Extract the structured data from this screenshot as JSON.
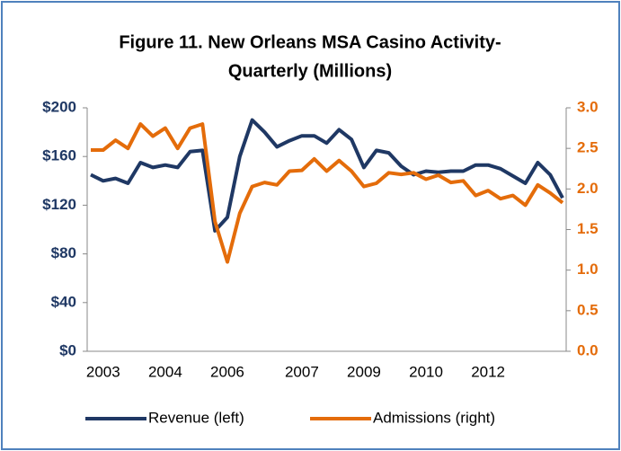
{
  "chart_data": {
    "type": "line",
    "title": [
      "Figure 11. New Orleans MSA Casino Activity-",
      "Quarterly (Millions)"
    ],
    "categories": [
      null,
      "2003",
      null,
      null,
      null,
      null,
      "2004",
      null,
      null,
      null,
      null,
      "2006",
      null,
      null,
      null,
      null,
      null,
      "2007",
      null,
      null,
      null,
      null,
      "2009",
      null,
      null,
      null,
      null,
      "2010",
      null,
      null,
      null,
      null,
      "2012",
      null,
      null,
      null,
      null,
      null,
      null
    ],
    "series": [
      {
        "name": "Revenue (left)",
        "color": "#1f3864",
        "axis": "y",
        "values": [
          145,
          140,
          142,
          138,
          155,
          151,
          153,
          151,
          164,
          165,
          99,
          110,
          160,
          190,
          180,
          168,
          173,
          177,
          177,
          171,
          182,
          174,
          151,
          165,
          163,
          152,
          145,
          148,
          147,
          148,
          148,
          153,
          153,
          150,
          144,
          138,
          155,
          145,
          126
        ]
      },
      {
        "name": "Admissions (right)",
        "color": "#e46c0a",
        "axis": "y2",
        "values": [
          2.48,
          2.48,
          2.6,
          2.5,
          2.8,
          2.65,
          2.75,
          2.5,
          2.75,
          2.8,
          1.6,
          1.1,
          1.7,
          2.03,
          2.08,
          2.05,
          2.22,
          2.23,
          2.37,
          2.22,
          2.35,
          2.22,
          2.03,
          2.07,
          2.2,
          2.18,
          2.2,
          2.12,
          2.17,
          2.08,
          2.1,
          1.92,
          1.98,
          1.88,
          1.92,
          1.8,
          2.05,
          1.95,
          1.83
        ]
      }
    ],
    "ylim": [
      0,
      200
    ],
    "yticks": [
      {
        "value": 0,
        "label": "$0"
      },
      {
        "value": 40,
        "label": "$40"
      },
      {
        "value": 80,
        "label": "$80"
      },
      {
        "value": 120,
        "label": "$120"
      },
      {
        "value": 160,
        "label": "$160"
      },
      {
        "value": 200,
        "label": "$200"
      }
    ],
    "y2lim": [
      0,
      3
    ],
    "y2ticks": [
      {
        "value": 0,
        "label": "0.0"
      },
      {
        "value": 0.5,
        "label": "0.5"
      },
      {
        "value": 1,
        "label": "1.0"
      },
      {
        "value": 1.5,
        "label": "1.5"
      },
      {
        "value": 2,
        "label": "2.0"
      },
      {
        "value": 2.5,
        "label": "2.5"
      },
      {
        "value": 3,
        "label": "3.0"
      }
    ],
    "grid": false,
    "legend": "bottom"
  }
}
